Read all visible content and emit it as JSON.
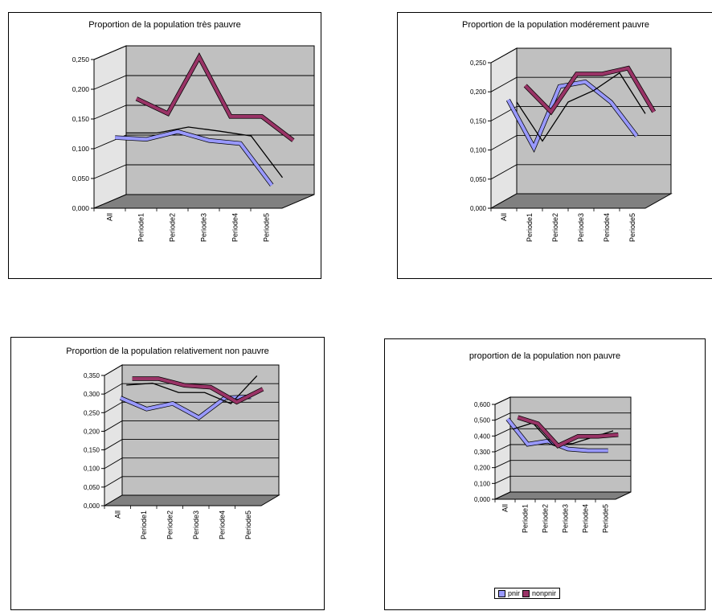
{
  "chart_data": [
    {
      "type": "line",
      "title": "Proportion de la population très pauvre",
      "categories": [
        "All",
        "Periode1",
        "Periode2",
        "Periode3",
        "Periode4",
        "Periode5"
      ],
      "ylim": [
        0,
        0.25
      ],
      "y_ticks": [
        "0,000",
        "0,050",
        "0,100",
        "0,150",
        "0,200",
        "0,250"
      ],
      "series": [
        {
          "values": [
            0.115,
            0.112,
            0.125,
            0.11,
            0.105,
            0.035
          ],
          "color": "#9999ff"
        },
        {
          "values": [
            0.115,
            0.115,
            0.125,
            0.118,
            0.11,
            0.04
          ],
          "color": "#000000"
        },
        {
          "values": [
            0.165,
            0.14,
            0.235,
            0.135,
            0.135,
            0.095
          ],
          "color": "#993366"
        }
      ]
    },
    {
      "type": "line",
      "title": "Proportion de la population modérement pauvre",
      "categories": [
        "All",
        "Periode1",
        "Periode2",
        "Periode3",
        "Periode4",
        "Periode5"
      ],
      "ylim": [
        0,
        0.25
      ],
      "y_ticks": [
        "0,000",
        "0,050",
        "0,100",
        "0,150",
        "0,200",
        "0,250"
      ],
      "series": [
        {
          "values": [
            0.182,
            0.1,
            0.205,
            0.213,
            0.178,
            0.12
          ],
          "color": "#9999ff"
        },
        {
          "values": [
            0.17,
            0.103,
            0.17,
            0.19,
            0.22,
            0.15
          ],
          "color": "#000000"
        },
        {
          "values": [
            0.19,
            0.145,
            0.21,
            0.21,
            0.22,
            0.145
          ],
          "color": "#993366"
        }
      ]
    },
    {
      "type": "line",
      "title": "Proportion de la population relativement non pauvre",
      "categories": [
        "All",
        "Periode1",
        "Periode2",
        "Periode3",
        "Periode4",
        "Periode5"
      ],
      "ylim": [
        0,
        0.35
      ],
      "y_ticks": [
        "0,000",
        "0,050",
        "0,100",
        "0,150",
        "0,200",
        "0,250",
        "0,300",
        "0,350"
      ],
      "series": [
        {
          "values": [
            0.285,
            0.255,
            0.27,
            0.232,
            0.285,
            0.288
          ],
          "color": "#9999ff"
        },
        {
          "values": [
            0.31,
            0.315,
            0.29,
            0.29,
            0.26,
            0.335
          ],
          "color": "#000000"
        },
        {
          "values": [
            0.318,
            0.318,
            0.3,
            0.295,
            0.255,
            0.29
          ],
          "color": "#993366"
        }
      ]
    },
    {
      "type": "line",
      "title": "proportion de la population non pauvre",
      "categories": [
        "All",
        "Periode1",
        "Periode2",
        "Periode3",
        "Periode4",
        "Periode5"
      ],
      "ylim": [
        0,
        0.6
      ],
      "y_ticks": [
        "0,000",
        "0,100",
        "0,200",
        "0,300",
        "0,400",
        "0,500",
        "0,600"
      ],
      "legend": [
        {
          "label": "pnir",
          "color": "#9999ff"
        },
        {
          "label": "nonpnir",
          "color": "#993366"
        }
      ],
      "series": [
        {
          "name": "pnir",
          "values": [
            0.5,
            0.34,
            0.36,
            0.31,
            0.3,
            0.3
          ],
          "color": "#9999ff"
        },
        {
          "values": [
            0.42,
            0.46,
            0.32,
            0.33,
            0.37,
            0.41
          ],
          "color": "#000000"
        },
        {
          "name": "nonpnir",
          "values": [
            0.48,
            0.44,
            0.3,
            0.36,
            0.36,
            0.37
          ],
          "color": "#993366"
        }
      ]
    }
  ]
}
